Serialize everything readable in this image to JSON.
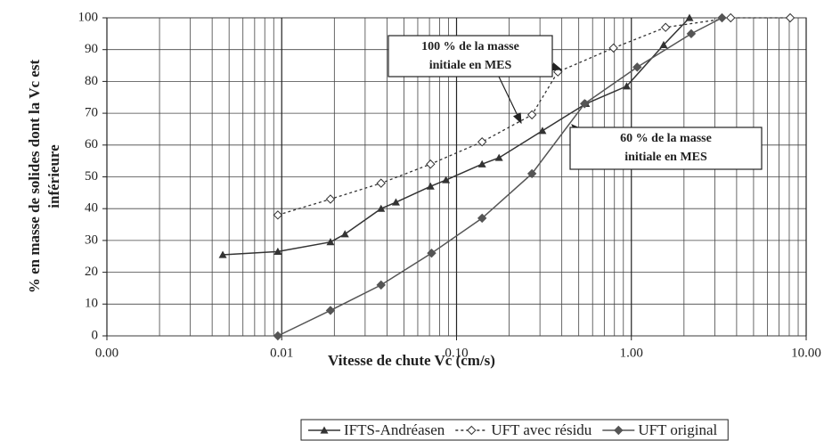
{
  "chart_data": {
    "type": "line",
    "x_label": "Vitesse de chute Vc (cm/s)",
    "y_label": [
      "% en masse de solides dont la Vc est",
      "inférieure"
    ],
    "xscale": "log",
    "xlim": [
      0.001,
      10
    ],
    "xticks": [
      {
        "value": 0.001,
        "label": "0.00"
      },
      0.01,
      {
        "value": 0.1,
        "label": "0.10"
      },
      {
        "value": 1,
        "label": "1.00"
      },
      {
        "value": 10,
        "label": "10.00"
      }
    ],
    "ylim": [
      0,
      100
    ],
    "yticks": [
      0,
      10,
      20,
      30,
      40,
      50,
      60,
      70,
      80,
      90,
      100
    ],
    "grid": true,
    "legend": "bottom",
    "series": [
      {
        "name": "IFTS-Andréasen",
        "color": "#333333",
        "marker": "triangle",
        "style": "solid",
        "x": [
          0.0046,
          0.0095,
          0.019,
          0.023,
          0.037,
          0.045,
          0.071,
          0.087,
          0.14,
          0.175,
          0.31,
          0.55,
          0.94,
          1.53,
          2.15
        ],
        "values": [
          25.5,
          26.5,
          29.5,
          32,
          40,
          42,
          47,
          49,
          54,
          56,
          64.5,
          73,
          78.5,
          91.5,
          100
        ]
      },
      {
        "name": "UFT avec résidu",
        "color": "#333333",
        "marker": "open-diamond",
        "style": "dotted",
        "x": [
          0.0095,
          0.019,
          0.037,
          0.071,
          0.14,
          0.27,
          0.38,
          0.79,
          1.57,
          3.7,
          8.1
        ],
        "values": [
          38,
          43,
          48,
          54,
          61,
          69.5,
          83,
          90.5,
          97,
          100,
          100
        ]
      },
      {
        "name": "UFT original",
        "color": "#555555",
        "marker": "diamond",
        "style": "solid",
        "x": [
          0.0095,
          0.019,
          0.037,
          0.072,
          0.14,
          0.27,
          0.54,
          1.08,
          2.2,
          3.3
        ],
        "values": [
          0,
          8,
          16,
          26,
          37,
          51,
          73,
          84.5,
          95,
          100
        ]
      }
    ],
    "annotations": [
      {
        "lines": [
          "100 % de la masse",
          "initiale en MES"
        ]
      },
      {
        "lines": [
          "60 % de la masse",
          "initiale en MES"
        ]
      }
    ]
  }
}
